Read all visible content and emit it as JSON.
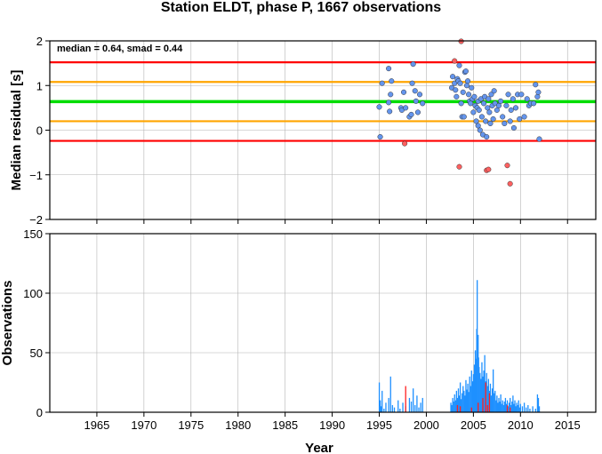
{
  "figure_title": "Station ELDT, phase P, 1667 observations",
  "chart_data": [
    {
      "type": "scatter",
      "title": "Station ELDT, phase P, 1667 observations",
      "ylabel": "Median residual [s]",
      "xlabel": "",
      "xlim": [
        1960,
        2018
      ],
      "ylim": [
        -2,
        2
      ],
      "x_ticks": [
        1965,
        1970,
        1975,
        1980,
        1985,
        1990,
        1995,
        2000,
        2005,
        2010,
        2015
      ],
      "y_ticks": [
        -2,
        -1,
        0,
        1,
        2
      ],
      "grid": true,
      "annotation": "median = 0.64, smad = 0.44",
      "reference_lines": [
        {
          "y": 1.52,
          "color": "#ff0000"
        },
        {
          "y": 1.08,
          "color": "#ffa500"
        },
        {
          "y": 0.64,
          "color": "#00dd00"
        },
        {
          "y": 0.2,
          "color": "#ffa500"
        },
        {
          "y": -0.24,
          "color": "#ff0000"
        }
      ],
      "series": [
        {
          "color": "#6495ed",
          "points": [
            [
              1995.0,
              0.52
            ],
            [
              1995.1,
              -0.15
            ],
            [
              1995.3,
              1.05
            ],
            [
              1996.0,
              1.38
            ],
            [
              1996.0,
              0.62
            ],
            [
              1996.1,
              0.42
            ],
            [
              1996.2,
              0.8
            ],
            [
              1996.3,
              1.1
            ],
            [
              1997.3,
              0.5
            ],
            [
              1997.4,
              0.45
            ],
            [
              1997.6,
              0.85
            ],
            [
              1997.8,
              0.5
            ],
            [
              1998.2,
              0.3
            ],
            [
              1998.4,
              0.35
            ],
            [
              1998.5,
              1.05
            ],
            [
              1998.6,
              1.48
            ],
            [
              1998.8,
              0.88
            ],
            [
              1998.9,
              0.65
            ],
            [
              1999.1,
              0.4
            ],
            [
              1999.3,
              0.8
            ],
            [
              1999.6,
              0.6
            ],
            [
              2002.7,
              0.95
            ],
            [
              2002.8,
              1.2
            ],
            [
              2003.0,
              1.05
            ],
            [
              2003.1,
              0.9
            ],
            [
              2003.2,
              0.75
            ],
            [
              2003.3,
              1.15
            ],
            [
              2003.4,
              1.1
            ],
            [
              2003.5,
              1.45
            ],
            [
              2003.6,
              1.05
            ],
            [
              2003.7,
              0.6
            ],
            [
              2003.8,
              0.3
            ],
            [
              2003.9,
              0.85
            ],
            [
              2004.0,
              0.3
            ],
            [
              2004.1,
              1.3
            ],
            [
              2004.2,
              1.32
            ],
            [
              2004.3,
              1.0
            ],
            [
              2004.4,
              1.1
            ],
            [
              2004.5,
              0.8
            ],
            [
              2004.6,
              0.65
            ],
            [
              2004.7,
              0.6
            ],
            [
              2004.8,
              0.95
            ],
            [
              2004.9,
              0.7
            ],
            [
              2005.0,
              0.4
            ],
            [
              2005.1,
              0.75
            ],
            [
              2005.2,
              0.55
            ],
            [
              2005.3,
              0.2
            ],
            [
              2005.4,
              0.5
            ],
            [
              2005.5,
              0.1
            ],
            [
              2005.5,
              0.65
            ],
            [
              2005.6,
              0.45
            ],
            [
              2005.7,
              0.0
            ],
            [
              2005.8,
              0.7
            ],
            [
              2005.9,
              0.3
            ],
            [
              2006.0,
              -0.1
            ],
            [
              2006.1,
              0.6
            ],
            [
              2006.2,
              0.75
            ],
            [
              2006.3,
              0.2
            ],
            [
              2006.4,
              -0.15
            ],
            [
              2006.5,
              0.5
            ],
            [
              2006.6,
              0.7
            ],
            [
              2006.7,
              0.4
            ],
            [
              2006.8,
              0.15
            ],
            [
              2006.9,
              0.8
            ],
            [
              2007.0,
              0.55
            ],
            [
              2007.1,
              0.25
            ],
            [
              2007.2,
              0.88
            ],
            [
              2007.3,
              0.6
            ],
            [
              2007.5,
              0.45
            ],
            [
              2007.7,
              0.55
            ],
            [
              2007.9,
              0.65
            ],
            [
              2008.1,
              0.3
            ],
            [
              2008.3,
              0.15
            ],
            [
              2008.5,
              0.55
            ],
            [
              2008.7,
              0.8
            ],
            [
              2008.9,
              0.2
            ],
            [
              2009.0,
              0.45
            ],
            [
              2009.2,
              0.7
            ],
            [
              2009.3,
              0.05
            ],
            [
              2009.5,
              0.5
            ],
            [
              2009.7,
              0.8
            ],
            [
              2009.9,
              0.25
            ],
            [
              2010.1,
              0.8
            ],
            [
              2010.4,
              0.3
            ],
            [
              2010.7,
              0.7
            ],
            [
              2010.9,
              0.55
            ],
            [
              2011.1,
              0.6
            ],
            [
              2011.4,
              0.6
            ],
            [
              2011.6,
              1.02
            ],
            [
              2011.8,
              0.75
            ],
            [
              2011.9,
              0.85
            ],
            [
              2012.0,
              -0.2
            ]
          ]
        },
        {
          "color": "#ff6060",
          "points": [
            [
              1997.7,
              -0.3
            ],
            [
              2003.0,
              1.55
            ],
            [
              2003.5,
              -0.82
            ],
            [
              2003.7,
              1.99
            ],
            [
              2006.4,
              -0.9
            ],
            [
              2006.6,
              -0.88
            ],
            [
              2008.6,
              -0.79
            ],
            [
              2008.9,
              -1.2
            ]
          ]
        }
      ]
    },
    {
      "type": "bar",
      "ylabel": "Observations",
      "xlabel": "Year",
      "xlim": [
        1960,
        2018
      ],
      "ylim": [
        0,
        150
      ],
      "x_ticks": [
        1965,
        1970,
        1975,
        1980,
        1985,
        1990,
        1995,
        2000,
        2005,
        2010,
        2015
      ],
      "y_ticks": [
        0,
        50,
        100,
        150
      ],
      "grid": true,
      "series": [
        {
          "color": "#1e90ff",
          "bars": [
            [
              1995.0,
              25
            ],
            [
              1995.1,
              10
            ],
            [
              1995.2,
              5
            ],
            [
              1995.3,
              18
            ],
            [
              1995.5,
              3
            ],
            [
              1995.7,
              8
            ],
            [
              1996.0,
              12
            ],
            [
              1996.2,
              30
            ],
            [
              1996.4,
              6
            ],
            [
              1996.6,
              4
            ],
            [
              1997.0,
              10
            ],
            [
              1997.2,
              3
            ],
            [
              1997.5,
              8
            ],
            [
              1997.8,
              5
            ],
            [
              1998.2,
              12
            ],
            [
              1998.4,
              9
            ],
            [
              1998.6,
              20
            ],
            [
              1998.8,
              6
            ],
            [
              1999.0,
              14
            ],
            [
              1999.2,
              4
            ],
            [
              1999.4,
              8
            ],
            [
              1999.6,
              12
            ],
            [
              2002.6,
              8
            ],
            [
              2002.7,
              6
            ],
            [
              2002.8,
              12
            ],
            [
              2002.9,
              9
            ],
            [
              2003.0,
              15
            ],
            [
              2003.1,
              10
            ],
            [
              2003.2,
              18
            ],
            [
              2003.3,
              12
            ],
            [
              2003.4,
              20
            ],
            [
              2003.5,
              14
            ],
            [
              2003.6,
              25
            ],
            [
              2003.7,
              11
            ],
            [
              2003.8,
              16
            ],
            [
              2003.9,
              22
            ],
            [
              2004.0,
              18
            ],
            [
              2004.1,
              14
            ],
            [
              2004.2,
              27
            ],
            [
              2004.3,
              19
            ],
            [
              2004.4,
              24
            ],
            [
              2004.5,
              17
            ],
            [
              2004.6,
              30
            ],
            [
              2004.7,
              22
            ],
            [
              2004.8,
              35
            ],
            [
              2004.9,
              26
            ],
            [
              2005.0,
              32
            ],
            [
              2005.1,
              40
            ],
            [
              2005.2,
              52
            ],
            [
              2005.3,
              45
            ],
            [
              2005.35,
              70
            ],
            [
              2005.4,
              111
            ],
            [
              2005.5,
              65
            ],
            [
              2005.55,
              46
            ],
            [
              2005.6,
              38
            ],
            [
              2005.7,
              33
            ],
            [
              2005.8,
              28
            ],
            [
              2005.9,
              42
            ],
            [
              2006.0,
              30
            ],
            [
              2006.1,
              35
            ],
            [
              2006.2,
              48
            ],
            [
              2006.3,
              26
            ],
            [
              2006.4,
              33
            ],
            [
              2006.5,
              22
            ],
            [
              2006.6,
              28
            ],
            [
              2006.7,
              18
            ],
            [
              2006.8,
              24
            ],
            [
              2006.9,
              14
            ],
            [
              2007.0,
              20
            ],
            [
              2007.1,
              36
            ],
            [
              2007.2,
              16
            ],
            [
              2007.3,
              18
            ],
            [
              2007.4,
              10
            ],
            [
              2007.5,
              14
            ],
            [
              2007.6,
              8
            ],
            [
              2007.7,
              12
            ],
            [
              2007.8,
              9
            ],
            [
              2007.9,
              15
            ],
            [
              2008.0,
              7
            ],
            [
              2008.1,
              10
            ],
            [
              2008.2,
              6
            ],
            [
              2008.3,
              9
            ],
            [
              2008.4,
              12
            ],
            [
              2008.5,
              7
            ],
            [
              2008.6,
              10
            ],
            [
              2008.7,
              5
            ],
            [
              2008.8,
              8
            ],
            [
              2008.9,
              12
            ],
            [
              2009.0,
              6
            ],
            [
              2009.1,
              9
            ],
            [
              2009.2,
              14
            ],
            [
              2009.3,
              7
            ],
            [
              2009.4,
              10
            ],
            [
              2009.5,
              5
            ],
            [
              2009.6,
              8
            ],
            [
              2009.7,
              6
            ],
            [
              2009.8,
              10
            ],
            [
              2009.9,
              4
            ],
            [
              2010.0,
              7
            ],
            [
              2010.2,
              5
            ],
            [
              2010.4,
              8
            ],
            [
              2010.6,
              4
            ],
            [
              2010.8,
              6
            ],
            [
              2011.0,
              3
            ],
            [
              2011.3,
              5
            ],
            [
              2011.6,
              3
            ],
            [
              2011.8,
              15
            ],
            [
              2011.9,
              12
            ],
            [
              2012.0,
              5
            ]
          ]
        },
        {
          "color": "#ff2020",
          "bars": [
            [
              1997.8,
              22
            ],
            [
              2003.3,
              6
            ],
            [
              2003.6,
              5
            ],
            [
              2004.8,
              4
            ],
            [
              2005.5,
              8
            ],
            [
              2006.0,
              12
            ],
            [
              2006.3,
              25
            ],
            [
              2006.5,
              6
            ],
            [
              2006.7,
              16
            ],
            [
              2008.6,
              6
            ],
            [
              2008.9,
              4
            ]
          ]
        }
      ]
    }
  ]
}
